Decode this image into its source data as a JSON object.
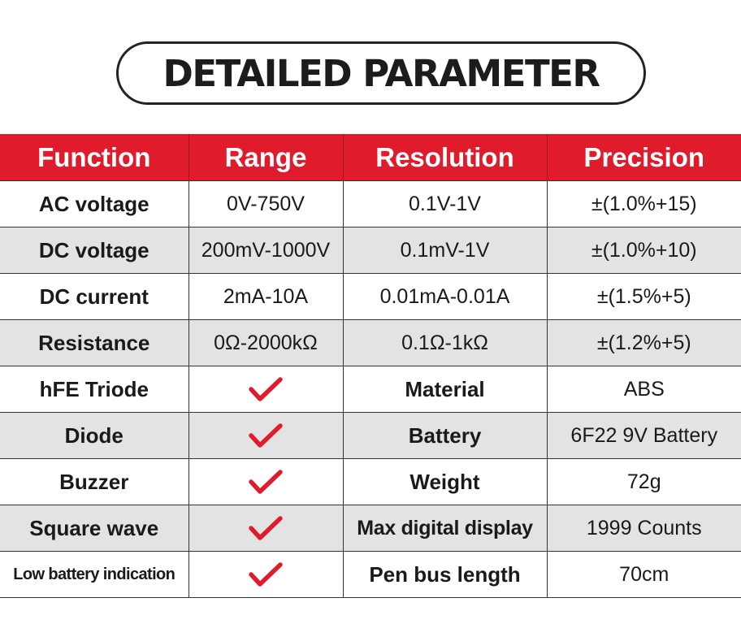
{
  "title": "DETAILED PARAMETER",
  "colors": {
    "header_bg": "#e01b2b",
    "check": "#e01b2b",
    "row_alt": "#e3e3e3"
  },
  "headers": [
    "Function",
    "Range",
    "Resolution",
    "Precision"
  ],
  "spec_rows": [
    {
      "function": "AC voltage",
      "range": "0V-750V",
      "resolution": "0.1V-1V",
      "precision": "±(1.0%+15)"
    },
    {
      "function": "DC voltage",
      "range": "200mV-1000V",
      "resolution": "0.1mV-1V",
      "precision": "±(1.0%+10)"
    },
    {
      "function": "DC current",
      "range": "2mA-10A",
      "resolution": "0.01mA-0.01A",
      "precision": "±(1.5%+5)"
    },
    {
      "function": "Resistance",
      "range": "0Ω-2000kΩ",
      "resolution": "0.1Ω-1kΩ",
      "precision": "±(1.2%+5)"
    }
  ],
  "feature_rows": [
    {
      "function": "hFE Triode",
      "supported_icon": "check-icon",
      "attribute": "Material",
      "value": "ABS"
    },
    {
      "function": "Diode",
      "supported_icon": "check-icon",
      "attribute": "Battery",
      "value": "6F22 9V Battery"
    },
    {
      "function": "Buzzer",
      "supported_icon": "check-icon",
      "attribute": "Weight",
      "value": "72g"
    },
    {
      "function": "Square wave",
      "supported_icon": "check-icon",
      "attribute": "Max digital display",
      "value": "1999 Counts"
    },
    {
      "function": "Low battery indication",
      "supported_icon": "check-icon",
      "attribute": "Pen bus length",
      "value": "70cm"
    }
  ]
}
